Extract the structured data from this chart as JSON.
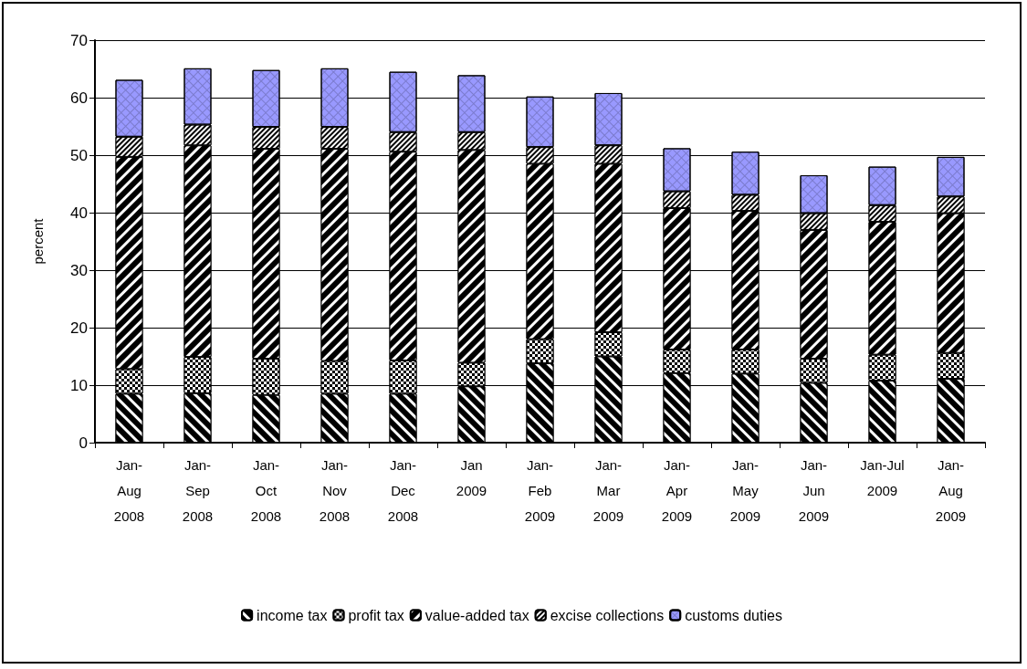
{
  "chart_data": {
    "type": "bar",
    "stacked": true,
    "ylabel": "percent",
    "categories": [
      "Jan-\nAug\n2008",
      "Jan-\nSep\n2008",
      "Jan-\nOct\n2008",
      "Jan-\nNov\n2008",
      "Jan-\nDec\n2008",
      "Jan\n2009",
      "Jan-\nFeb\n2009",
      "Jan-\nMar\n2009",
      "Jan-\nApr\n2009",
      "Jan-\nMay\n2009",
      "Jan-\nJun\n2009",
      "Jan-Jul\n2009",
      "Jan-\nAug\n2009"
    ],
    "series": [
      {
        "name": "income tax",
        "color": "#000000",
        "values": [
          8.5,
          8.6,
          8.3,
          8.5,
          8.5,
          9.8,
          13.8,
          15.0,
          12.1,
          12.0,
          10.4,
          10.8,
          11.1
        ]
      },
      {
        "name": "profit tax",
        "color": "#000000",
        "values": [
          4.3,
          6.3,
          6.3,
          5.7,
          5.8,
          4.1,
          4.2,
          4.2,
          4.1,
          4.2,
          4.2,
          4.5,
          4.5
        ]
      },
      {
        "name": "value-added tax",
        "color": "#000000",
        "values": [
          36.9,
          36.8,
          36.5,
          36.9,
          36.3,
          37.0,
          30.5,
          29.3,
          24.6,
          24.1,
          22.4,
          23.1,
          24.3
        ]
      },
      {
        "name": "excise collections",
        "color": "#000000",
        "values": [
          3.5,
          3.6,
          3.8,
          3.8,
          3.4,
          3.1,
          2.9,
          3.2,
          2.9,
          2.8,
          2.9,
          2.9,
          2.9
        ]
      },
      {
        "name": "customs duties",
        "color": "#9999ff",
        "values": [
          9.9,
          9.8,
          9.9,
          10.2,
          10.5,
          9.9,
          8.8,
          9.1,
          7.5,
          7.5,
          6.6,
          6.7,
          6.9
        ]
      }
    ],
    "ylim": [
      0,
      70
    ],
    "yticks": [
      0,
      10,
      20,
      30,
      40,
      50,
      60,
      70
    ],
    "grid": "y",
    "legend": "bottom"
  }
}
